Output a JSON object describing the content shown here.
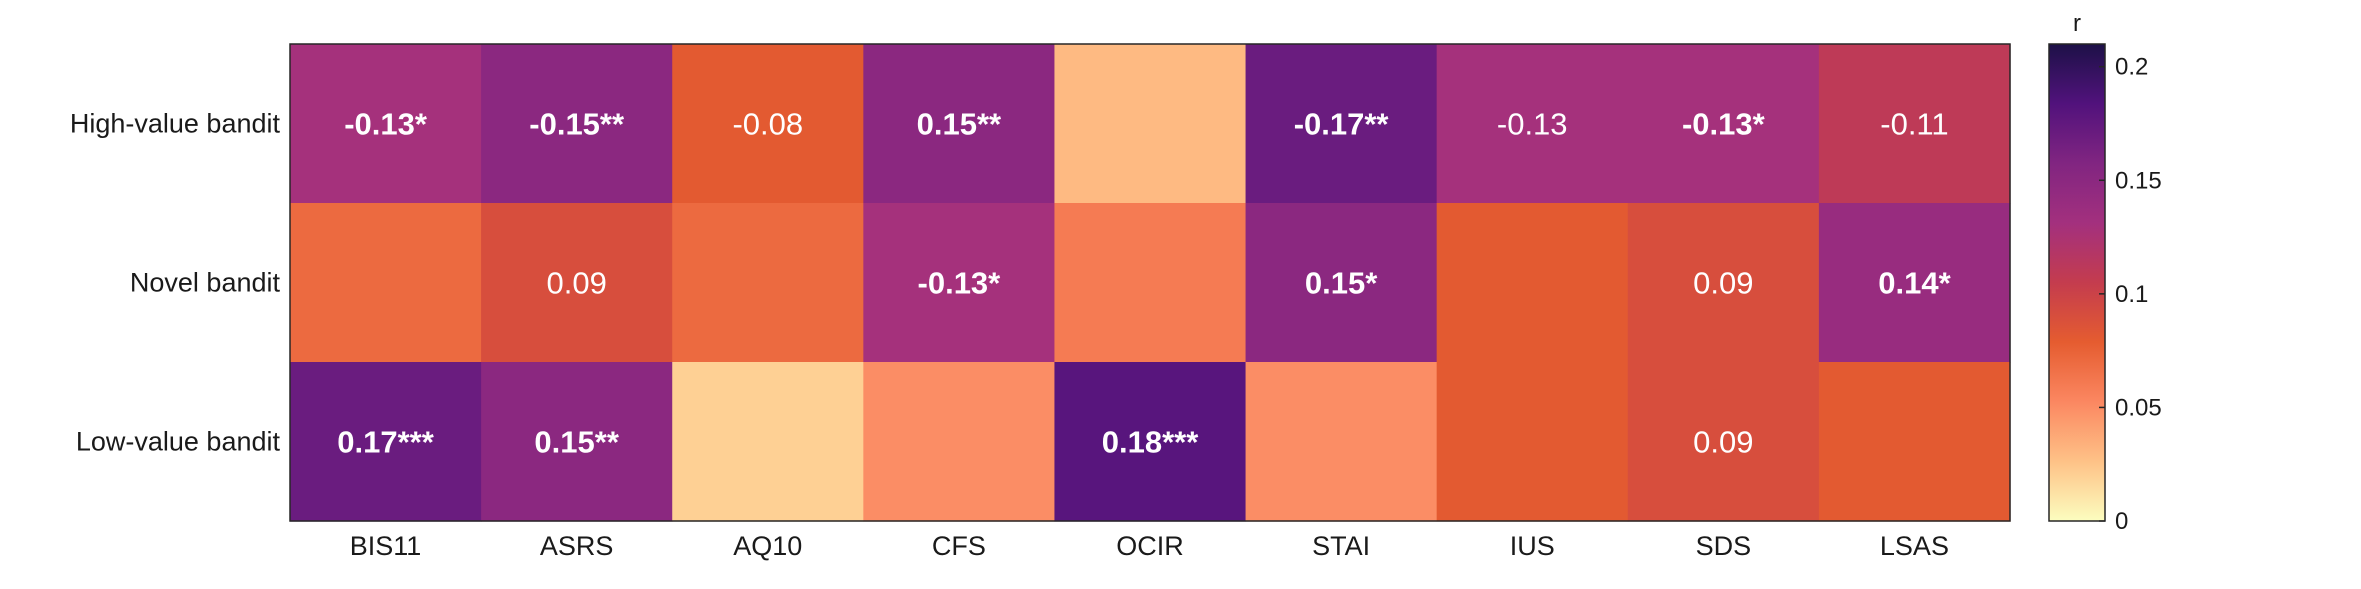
{
  "chart_data": {
    "type": "heatmap",
    "rows": [
      "High-value bandit",
      "Novel bandit",
      "Low-value bandit"
    ],
    "columns": [
      "BIS11",
      "ASRS",
      "AQ10",
      "CFS",
      "OCIR",
      "STAI",
      "IUS",
      "SDS",
      "LSAS"
    ],
    "values": [
      [
        0.13,
        0.15,
        0.08,
        0.15,
        0.03,
        0.17,
        0.13,
        0.13,
        0.11
      ],
      [
        0.07,
        0.09,
        0.07,
        0.13,
        0.06,
        0.15,
        0.08,
        0.09,
        0.14
      ],
      [
        0.17,
        0.15,
        0.02,
        0.05,
        0.18,
        0.05,
        0.08,
        0.09,
        0.08
      ]
    ],
    "labels": [
      [
        "-0.13*",
        "-0.15**",
        "-0.08",
        "0.15**",
        "",
        "-0.17**",
        "-0.13",
        "-0.13*",
        "-0.11"
      ],
      [
        "",
        "0.09",
        "",
        "-0.13*",
        "",
        "0.15*",
        "",
        "0.09",
        "0.14*"
      ],
      [
        "0.17***",
        "0.15**",
        "",
        "",
        "0.18***",
        "",
        "",
        "0.09",
        ""
      ]
    ],
    "significant": [
      [
        true,
        true,
        false,
        true,
        false,
        true,
        false,
        true,
        false
      ],
      [
        false,
        false,
        false,
        true,
        false,
        true,
        false,
        false,
        true
      ],
      [
        true,
        true,
        false,
        false,
        true,
        false,
        false,
        false,
        false
      ]
    ],
    "colorbar": {
      "title": "r",
      "range": [
        0,
        0.21
      ],
      "ticks": [
        0,
        0.05,
        0.1,
        0.15,
        0.2
      ],
      "tick_labels": [
        "0",
        "0.05",
        "0.1",
        "0.15",
        "0.2"
      ],
      "colormap": [
        "#fcfdbf",
        "#fec287",
        "#fb8761",
        "#e55c30",
        "#c43c4e",
        "#a3307e",
        "#812581",
        "#51127c",
        "#1d1147"
      ]
    }
  }
}
